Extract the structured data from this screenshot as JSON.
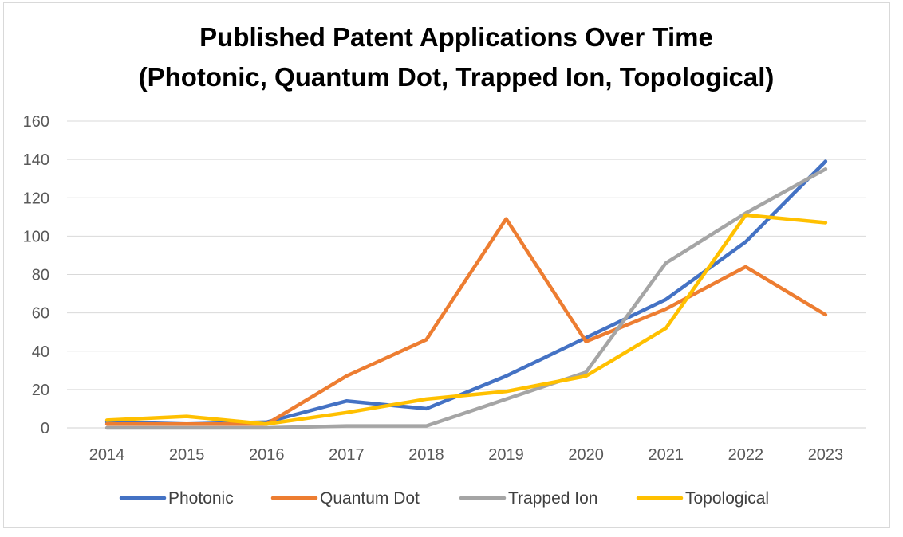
{
  "chart_data": {
    "type": "line",
    "title_line1": "Published Patent Applications Over Time",
    "title_line2": "(Photonic, Quantum Dot, Trapped Ion, Topological)",
    "xlabel": "",
    "ylabel": "",
    "ylim": [
      0,
      160
    ],
    "yticks": [
      "0",
      "20",
      "40",
      "60",
      "80",
      "100",
      "120",
      "140",
      "160"
    ],
    "grid": true,
    "legend_position": "bottom",
    "categories": [
      "2014",
      "2015",
      "2016",
      "2017",
      "2018",
      "2019",
      "2020",
      "2021",
      "2022",
      "2023"
    ],
    "series": [
      {
        "name": "Photonic",
        "color": "#4472C4",
        "values": [
          3,
          2,
          3,
          14,
          10,
          27,
          47,
          67,
          97,
          139
        ]
      },
      {
        "name": "Quantum Dot",
        "color": "#ED7D31",
        "values": [
          2,
          2,
          2,
          27,
          46,
          109,
          45,
          62,
          84,
          59
        ]
      },
      {
        "name": "Trapped Ion",
        "color": "#A5A5A5",
        "values": [
          0,
          0,
          0,
          1,
          1,
          15,
          29,
          86,
          112,
          135
        ]
      },
      {
        "name": "Topological",
        "color": "#FFC000",
        "values": [
          4,
          6,
          2,
          8,
          15,
          19,
          27,
          52,
          111,
          107
        ]
      }
    ]
  }
}
